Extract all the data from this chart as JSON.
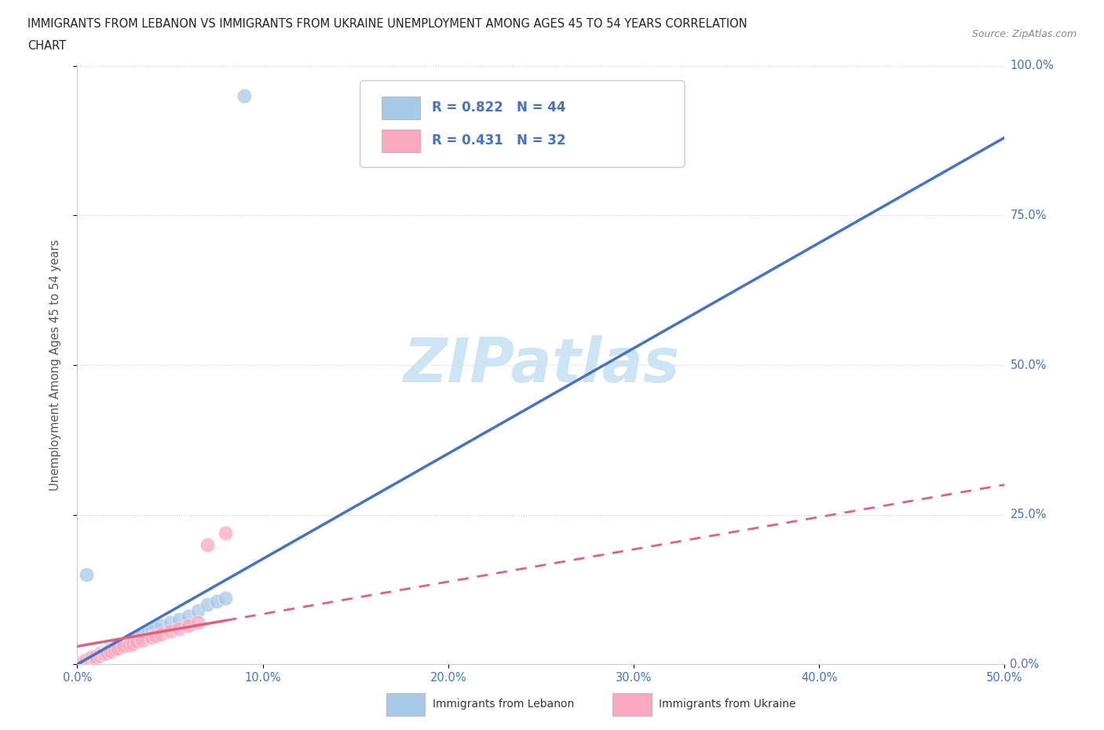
{
  "title_line1": "IMMIGRANTS FROM LEBANON VS IMMIGRANTS FROM UKRAINE UNEMPLOYMENT AMONG AGES 45 TO 54 YEARS CORRELATION",
  "title_line2": "CHART",
  "source_text": "Source: ZipAtlas.com",
  "ylabel": "Unemployment Among Ages 45 to 54 years",
  "xlim": [
    0.0,
    50.0
  ],
  "ylim": [
    0.0,
    100.0
  ],
  "ytick_labels": [
    "0.0%",
    "25.0%",
    "50.0%",
    "75.0%",
    "100.0%"
  ],
  "ytick_values": [
    0,
    25,
    50,
    75,
    100
  ],
  "xtick_values": [
    0,
    10,
    20,
    30,
    40,
    50
  ],
  "watermark": "ZIPatlas",
  "r_lebanon": "0.822",
  "n_lebanon": "44",
  "r_ukraine": "0.431",
  "n_ukraine": "32",
  "legend_label_lebanon": "Immigrants from Lebanon",
  "legend_label_ukraine": "Immigrants from Ukraine",
  "lebanon_color": "#a8c8e8",
  "ukraine_color": "#f9a8c0",
  "lebanon_line_color": "#4472c4",
  "ukraine_line_color": "#e06080",
  "tick_label_color": "#4472c4",
  "title_color": "#222222",
  "axis_label_color": "#555555",
  "watermark_color": "#cde4f5",
  "background_color": "#ffffff",
  "lebanon_x": [
    0.3,
    0.4,
    0.5,
    0.5,
    0.6,
    0.7,
    0.8,
    0.9,
    1.0,
    1.1,
    1.2,
    1.3,
    1.4,
    1.5,
    1.6,
    1.7,
    1.8,
    2.0,
    2.2,
    2.5,
    2.5,
    2.8,
    3.0,
    3.2,
    3.5,
    3.8,
    4.0,
    4.2,
    4.5,
    5.0,
    5.5,
    6.0,
    6.5,
    7.0,
    7.5,
    8.0,
    9.0,
    0.2,
    0.3,
    0.4,
    0.6,
    0.8,
    1.0,
    1.2
  ],
  "lebanon_y": [
    0.5,
    0.6,
    0.8,
    15.0,
    0.9,
    1.0,
    1.2,
    1.3,
    1.5,
    1.6,
    1.8,
    2.0,
    2.0,
    2.0,
    2.2,
    2.3,
    2.5,
    2.8,
    3.2,
    3.5,
    3.5,
    4.0,
    4.0,
    4.5,
    5.0,
    5.2,
    5.5,
    6.0,
    6.5,
    7.0,
    7.5,
    8.0,
    9.0,
    10.0,
    10.5,
    11.0,
    95.0,
    0.3,
    0.4,
    0.5,
    0.8,
    1.1,
    1.4,
    1.8
  ],
  "ukraine_x": [
    0.2,
    0.3,
    0.4,
    0.5,
    0.5,
    0.6,
    0.7,
    0.8,
    0.9,
    1.0,
    1.0,
    1.2,
    1.4,
    1.5,
    1.6,
    1.8,
    2.0,
    2.2,
    2.5,
    2.8,
    3.0,
    3.2,
    3.5,
    4.0,
    4.2,
    4.5,
    5.0,
    5.5,
    6.0,
    6.5,
    7.0,
    8.0
  ],
  "ukraine_y": [
    0.4,
    0.5,
    0.6,
    0.7,
    0.8,
    0.9,
    1.0,
    1.2,
    1.1,
    1.0,
    1.3,
    1.5,
    1.7,
    1.8,
    2.0,
    2.2,
    2.5,
    2.7,
    3.0,
    3.2,
    3.5,
    3.8,
    4.0,
    4.5,
    4.8,
    5.0,
    5.5,
    6.0,
    6.5,
    7.0,
    20.0,
    22.0
  ],
  "lb_line_x0": 0.0,
  "lb_line_y0": 0.0,
  "lb_line_x1": 50.0,
  "lb_line_y1": 88.0,
  "uk_line_x0": 0.0,
  "uk_line_y0": 3.0,
  "uk_line_x1": 50.0,
  "uk_line_y1": 30.0,
  "uk_solid_x0": 0.0,
  "uk_solid_x1": 8.0
}
